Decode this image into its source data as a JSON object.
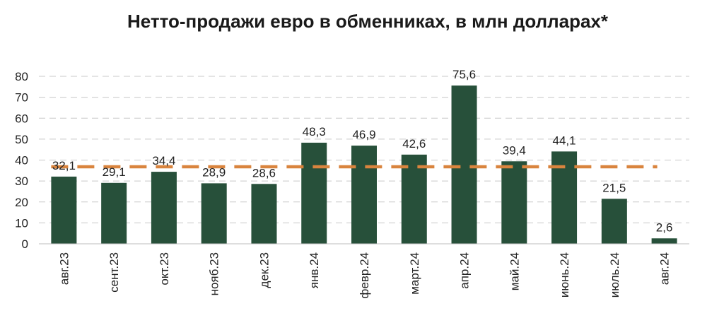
{
  "chart_data": {
    "type": "bar",
    "title": "Нетто-продажи евро в обменниках, в млн долларах*",
    "categories": [
      "авг.23",
      "сент.23",
      "окт.23",
      "нояб.23",
      "дек.23",
      "янв.24",
      "февр.24",
      "март.24",
      "апр.24",
      "май.24",
      "июнь.24",
      "июль.24",
      "авг.24"
    ],
    "values": [
      32.1,
      29.1,
      34.4,
      28.9,
      28.6,
      48.3,
      46.9,
      42.6,
      75.6,
      39.4,
      44.1,
      21.5,
      2.6
    ],
    "data_labels": [
      "32,1",
      "29,1",
      "34,4",
      "28,9",
      "28,6",
      "48,3",
      "46,9",
      "42,6",
      "75,6",
      "39,4",
      "44,1",
      "21,5",
      "2,6"
    ],
    "average_line": 36.8,
    "yticks": [
      0,
      10,
      20,
      30,
      40,
      50,
      60,
      70,
      80
    ],
    "ylim": [
      0,
      80
    ],
    "grid": true,
    "xlabel": "",
    "ylabel": "",
    "colors": {
      "bar": "#27503a",
      "average_line": "#d9843e",
      "grid": "#c8c8c8"
    }
  }
}
